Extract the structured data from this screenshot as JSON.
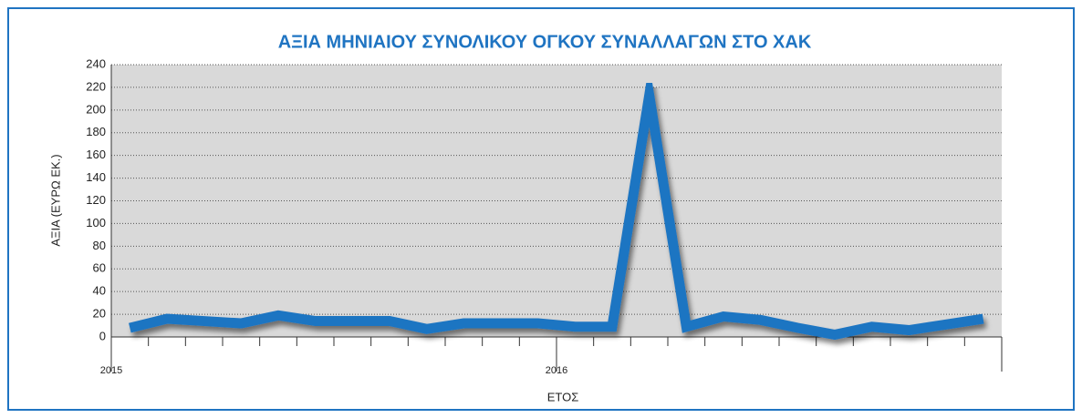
{
  "chart_data": {
    "type": "line",
    "title": "ΑΞΙΑ ΜΗΝΙΑΙΟΥ ΣΥΝΟΛΙΚΟΥ ΟΓΚΟΥ ΣΥΝΑΛΛΑΓΩΝ ΣΤΟ ΧΑΚ",
    "y_label": "ΑΞΙΑ (ΕΥΡΩ ΕΚ.)",
    "x_label": "ΕΤΟΣ",
    "categories": [
      "2015",
      null,
      null,
      null,
      null,
      null,
      null,
      null,
      null,
      null,
      null,
      null,
      "2016",
      null,
      null,
      null,
      null,
      null,
      null,
      null,
      null,
      null,
      null,
      null
    ],
    "series": [
      {
        "name": "ΑΞΙΑ",
        "color": "#1f74c2",
        "values": [
          8,
          16,
          14,
          12,
          19,
          14,
          14,
          14,
          7,
          12,
          12,
          12,
          9,
          9,
          213,
          9,
          18,
          15,
          8,
          2,
          9,
          6,
          11,
          16
        ]
      }
    ],
    "ylim": [
      0,
      240
    ],
    "yticks": [
      0,
      20,
      40,
      60,
      80,
      100,
      120,
      140,
      160,
      180,
      200,
      220,
      240
    ],
    "grid": true
  }
}
